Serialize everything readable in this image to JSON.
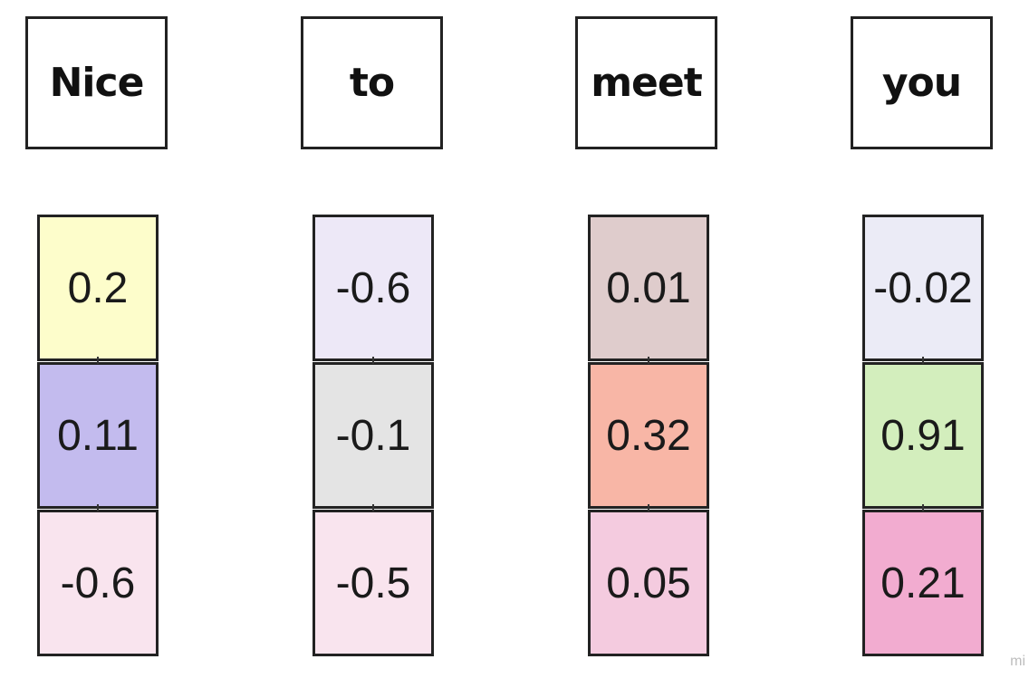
{
  "tokens": [
    {
      "label": "Nice",
      "values": [
        "0.2",
        "0.11",
        "-0.6"
      ],
      "colors": [
        "#fdfdcb",
        "#c3bbee",
        "#f9e4ee"
      ]
    },
    {
      "label": "to",
      "values": [
        "-0.6",
        "-0.1",
        "-0.5"
      ],
      "colors": [
        "#ede8f7",
        "#e4e4e4",
        "#f9e4ee"
      ]
    },
    {
      "label": "meet",
      "values": [
        "0.01",
        "0.32",
        "0.05"
      ],
      "colors": [
        "#dfcccc",
        "#f8b6a6",
        "#f4cbdf"
      ]
    },
    {
      "label": "you",
      "values": [
        "-0.02",
        "0.91",
        "0.21"
      ],
      "colors": [
        "#ebebf6",
        "#d3eebd",
        "#f2acd0"
      ]
    }
  ],
  "watermark": "mi"
}
